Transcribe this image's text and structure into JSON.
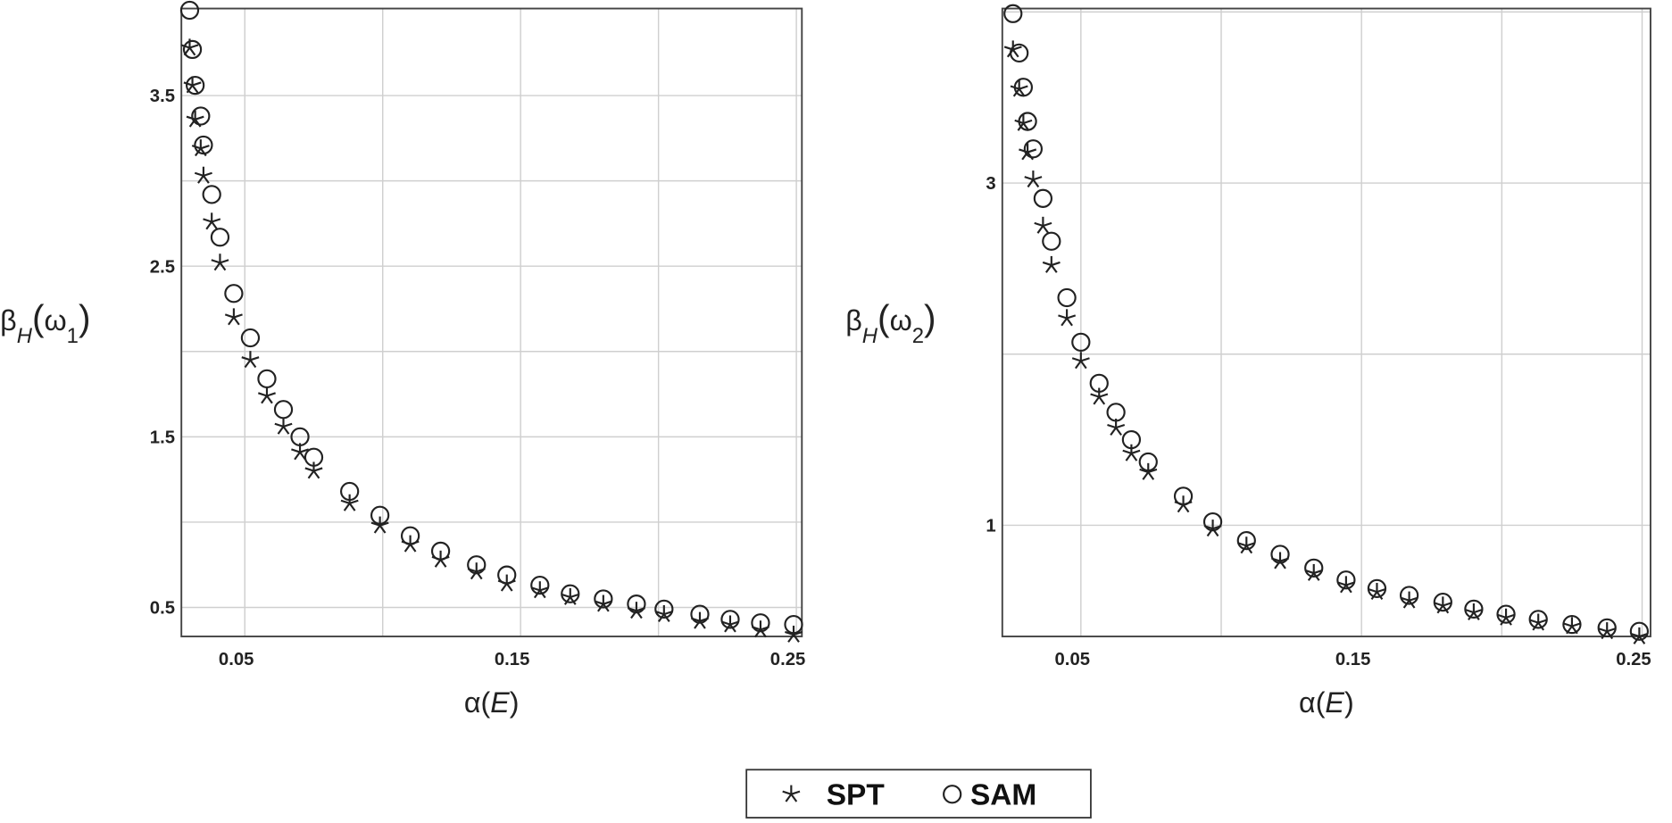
{
  "chart_data": [
    {
      "type": "scatter",
      "x_label": [
        "α(",
        "E",
        ")"
      ],
      "y_label": [
        "β",
        "H",
        "(",
        "ω",
        "1",
        ")"
      ],
      "xlim": [
        0.027,
        0.252
      ],
      "xticks": [
        0.05,
        0.15,
        0.25
      ],
      "x_minor_grid": [
        0.1,
        0.2
      ],
      "ylim": [
        0.33,
        4.01
      ],
      "yticks": [
        0.5,
        1.5,
        2.5,
        3.5
      ],
      "y_minor_grid": [
        1,
        2,
        3
      ],
      "grid": true,
      "x": [
        0.03,
        0.031,
        0.032,
        0.034,
        0.035,
        0.038,
        0.041,
        0.046,
        0.052,
        0.058,
        0.064,
        0.07,
        0.075,
        0.088,
        0.099,
        0.11,
        0.121,
        0.134,
        0.145,
        0.157,
        0.168,
        0.18,
        0.192,
        0.202,
        0.215,
        0.226,
        0.237,
        0.249
      ],
      "series": [
        {
          "name": "SPT",
          "marker": "star",
          "color": "#222",
          "values": [
            3.78,
            3.56,
            3.36,
            3.19,
            3.03,
            2.76,
            2.52,
            2.2,
            1.95,
            1.74,
            1.56,
            1.41,
            1.3,
            1.11,
            0.98,
            0.87,
            0.78,
            0.71,
            0.64,
            0.6,
            0.56,
            0.52,
            0.48,
            0.46,
            0.42,
            0.4,
            0.37,
            0.34
          ]
        },
        {
          "name": "SAM",
          "marker": "circle",
          "color": "#222",
          "values": [
            4.0,
            3.77,
            3.56,
            3.38,
            3.21,
            2.92,
            2.67,
            2.34,
            2.08,
            1.84,
            1.66,
            1.5,
            1.38,
            1.18,
            1.04,
            0.92,
            0.83,
            0.75,
            0.69,
            0.63,
            0.58,
            0.55,
            0.52,
            0.49,
            0.46,
            0.43,
            0.41,
            0.4
          ]
        }
      ]
    },
    {
      "type": "scatter",
      "x_label": [
        "α(",
        "E",
        ")"
      ],
      "y_label": [
        "β",
        "H",
        "(",
        "ω",
        "2",
        ")"
      ],
      "xlim": [
        0.022,
        0.253
      ],
      "xticks": [
        0.05,
        0.15,
        0.25
      ],
      "x_minor_grid": [
        0.1,
        0.2
      ],
      "ylim": [
        0.35,
        4.02
      ],
      "yticks": [
        1,
        3
      ],
      "y_minor_grid": [
        2,
        4
      ],
      "grid": true,
      "x": [
        0.0258,
        0.028,
        0.0295,
        0.031,
        0.033,
        0.0365,
        0.0395,
        0.045,
        0.05,
        0.0565,
        0.0625,
        0.068,
        0.074,
        0.0865,
        0.097,
        0.109,
        0.121,
        0.133,
        0.1445,
        0.1555,
        0.167,
        0.179,
        0.19,
        0.2015,
        0.213,
        0.225,
        0.2375,
        0.249
      ],
      "series": [
        {
          "name": "SPT",
          "marker": "star",
          "color": "#222",
          "values": [
            3.78,
            3.55,
            3.35,
            3.18,
            3.02,
            2.75,
            2.52,
            2.21,
            1.96,
            1.75,
            1.57,
            1.42,
            1.31,
            1.12,
            0.98,
            0.88,
            0.79,
            0.72,
            0.65,
            0.61,
            0.56,
            0.53,
            0.49,
            0.46,
            0.43,
            0.41,
            0.38,
            0.35
          ]
        },
        {
          "name": "SAM",
          "marker": "circle",
          "color": "#222",
          "values": [
            3.99,
            3.76,
            3.56,
            3.36,
            3.2,
            2.91,
            2.66,
            2.33,
            2.07,
            1.83,
            1.66,
            1.5,
            1.37,
            1.17,
            1.02,
            0.91,
            0.83,
            0.75,
            0.68,
            0.63,
            0.59,
            0.55,
            0.51,
            0.48,
            0.45,
            0.42,
            0.4,
            0.38
          ]
        }
      ]
    }
  ]
}
